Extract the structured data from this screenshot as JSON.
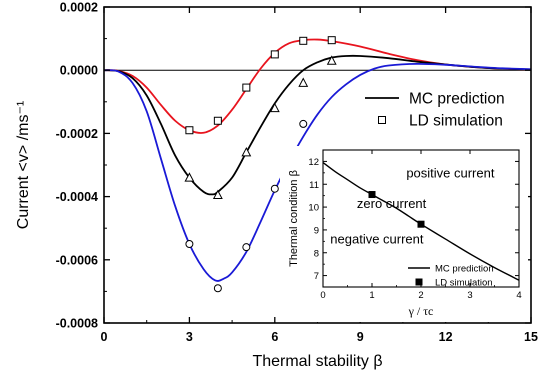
{
  "main_chart": {
    "chart_data": {
      "type": "line",
      "xlabel": "Thermal stability β",
      "ylabel": "Current <v> /ms⁻¹",
      "xlim": [
        0,
        15
      ],
      "ylim": [
        -0.0008,
        0.0002
      ],
      "x_ticks": [
        0,
        3,
        6,
        9,
        12,
        15
      ],
      "x_tick_labels": [
        "0",
        "3",
        "6",
        "9",
        "12",
        "15"
      ],
      "y_ticks": [
        -0.0008,
        -0.0006,
        -0.0004,
        -0.0002,
        0.0,
        0.0002
      ],
      "y_tick_labels": [
        "-0.0008",
        "-0.0006",
        "-0.0004",
        "-0.0002",
        "0.0000",
        "0.0002"
      ],
      "zero_line": true,
      "legend_position": "center-right",
      "legend": [
        {
          "label": "MC prediction",
          "marker": "line"
        },
        {
          "label": "LD simulation",
          "marker": "open-square"
        }
      ],
      "series": [
        {
          "color": "#e8141e",
          "marker": "open-square",
          "curve": [
            [
              0,
              0
            ],
            [
              0.5,
              -2e-06
            ],
            [
              1,
              -1.8e-05
            ],
            [
              1.5,
              -5.5e-05
            ],
            [
              2,
              -0.00011
            ],
            [
              2.5,
              -0.00016
            ],
            [
              3,
              -0.00019
            ],
            [
              3.5,
              -0.000198
            ],
            [
              4,
              -0.000175
            ],
            [
              4.5,
              -0.000125
            ],
            [
              5,
              -6e-05
            ],
            [
              5.5,
              5e-06
            ],
            [
              6,
              5.5e-05
            ],
            [
              6.5,
              8.5e-05
            ],
            [
              7,
              9.5e-05
            ],
            [
              7.5,
              9.7e-05
            ],
            [
              8,
              9.2e-05
            ],
            [
              9,
              7.5e-05
            ],
            [
              10,
              5.2e-05
            ],
            [
              11,
              3.2e-05
            ],
            [
              12,
              1.8e-05
            ],
            [
              13,
              1e-05
            ],
            [
              14,
              5e-06
            ],
            [
              15,
              2e-06
            ]
          ],
          "points": [
            [
              3,
              -0.00019
            ],
            [
              4,
              -0.00016
            ],
            [
              5,
              -5.5e-05
            ],
            [
              6,
              5e-05
            ],
            [
              7,
              9.3e-05
            ],
            [
              8,
              9.5e-05
            ]
          ]
        },
        {
          "color": "#000000",
          "marker": "open-triangle",
          "curve": [
            [
              0,
              0
            ],
            [
              0.5,
              -3e-06
            ],
            [
              1,
              -2.5e-05
            ],
            [
              1.5,
              -8e-05
            ],
            [
              2,
              -0.00017
            ],
            [
              2.5,
              -0.00027
            ],
            [
              3,
              -0.00034
            ],
            [
              3.5,
              -0.000385
            ],
            [
              3.8,
              -0.000393
            ],
            [
              4,
              -0.000385
            ],
            [
              4.5,
              -0.00034
            ],
            [
              5,
              -0.00026
            ],
            [
              5.5,
              -0.00018
            ],
            [
              6,
              -0.000105
            ],
            [
              6.5,
              -4.5e-05
            ],
            [
              7,
              0.0
            ],
            [
              7.5,
              2.5e-05
            ],
            [
              8,
              4e-05
            ],
            [
              8.5,
              4.5e-05
            ],
            [
              9,
              4.5e-05
            ],
            [
              10,
              3.8e-05
            ],
            [
              11,
              2.7e-05
            ],
            [
              12,
              1.8e-05
            ],
            [
              13,
              1e-05
            ],
            [
              14,
              5e-06
            ],
            [
              15,
              2e-06
            ]
          ],
          "points": [
            [
              3,
              -0.00034
            ],
            [
              4,
              -0.000395
            ],
            [
              5,
              -0.00026
            ],
            [
              6,
              -0.00012
            ],
            [
              7,
              -4e-05
            ],
            [
              8,
              3e-05
            ]
          ]
        },
        {
          "color": "#1a1ad6",
          "marker": "open-circle",
          "curve": [
            [
              0,
              0
            ],
            [
              0.5,
              -4e-06
            ],
            [
              1,
              -4e-05
            ],
            [
              1.5,
              -0.00013
            ],
            [
              2,
              -0.00028
            ],
            [
              2.5,
              -0.00043
            ],
            [
              3,
              -0.00055
            ],
            [
              3.5,
              -0.00063
            ],
            [
              3.9,
              -0.000665
            ],
            [
              4.2,
              -0.00066
            ],
            [
              4.5,
              -0.00064
            ],
            [
              5,
              -0.000575
            ],
            [
              5.5,
              -0.00048
            ],
            [
              6,
              -0.00038
            ],
            [
              6.5,
              -0.00029
            ],
            [
              7,
              -0.00021
            ],
            [
              7.5,
              -0.00014
            ],
            [
              8,
              -8.5e-05
            ],
            [
              8.5,
              -4.5e-05
            ],
            [
              9,
              -1.5e-05
            ],
            [
              9.5,
              5e-06
            ],
            [
              10,
              1.5e-05
            ],
            [
              11,
              2e-05
            ],
            [
              12,
              1.7e-05
            ],
            [
              13,
              1.1e-05
            ],
            [
              14,
              6e-06
            ],
            [
              15,
              3e-06
            ]
          ],
          "points": [
            [
              3,
              -0.00055
            ],
            [
              4,
              -0.00069
            ],
            [
              5,
              -0.00056
            ],
            [
              6,
              -0.000375
            ],
            [
              7,
              -0.00017
            ]
          ]
        }
      ]
    }
  },
  "inset_chart": {
    "chart_data": {
      "type": "line",
      "xlabel": "γ / τc",
      "ylabel": "Thermal condition β",
      "xlim": [
        0,
        4
      ],
      "ylim": [
        6.5,
        12.5
      ],
      "x_ticks": [
        0,
        1,
        2,
        3,
        4
      ],
      "x_tick_labels": [
        "0",
        "1",
        "2",
        "3",
        "4"
      ],
      "y_ticks": [
        7,
        8,
        9,
        10,
        11,
        12
      ],
      "y_tick_labels": [
        "7",
        "8",
        "9",
        "10",
        "11",
        "12"
      ],
      "region_labels": [
        {
          "text": "positive current",
          "x": 2.6,
          "y": 11.3
        },
        {
          "text": "zero current",
          "x": 1.4,
          "y": 9.95
        },
        {
          "text": "negative current",
          "x": 1.1,
          "y": 8.4
        }
      ],
      "legend_position": "bottom-right",
      "legend": [
        {
          "label": "MC prediction",
          "marker": "line"
        },
        {
          "label": "LD simulation",
          "marker": "filled-square"
        }
      ],
      "series": [
        {
          "color": "#000000",
          "marker": "filled-square",
          "curve": [
            [
              0,
              11.95
            ],
            [
              0.25,
              11.55
            ],
            [
              0.5,
              11.2
            ],
            [
              0.75,
              10.85
            ],
            [
              1,
              10.55
            ],
            [
              1.25,
              10.25
            ],
            [
              1.5,
              9.95
            ],
            [
              1.75,
              9.6
            ],
            [
              2,
              9.25
            ],
            [
              2.5,
              8.6
            ],
            [
              3,
              7.95
            ],
            [
              3.5,
              7.35
            ],
            [
              4,
              6.8
            ]
          ],
          "points": [
            [
              1,
              10.55
            ],
            [
              2,
              9.25
            ]
          ]
        }
      ]
    }
  }
}
